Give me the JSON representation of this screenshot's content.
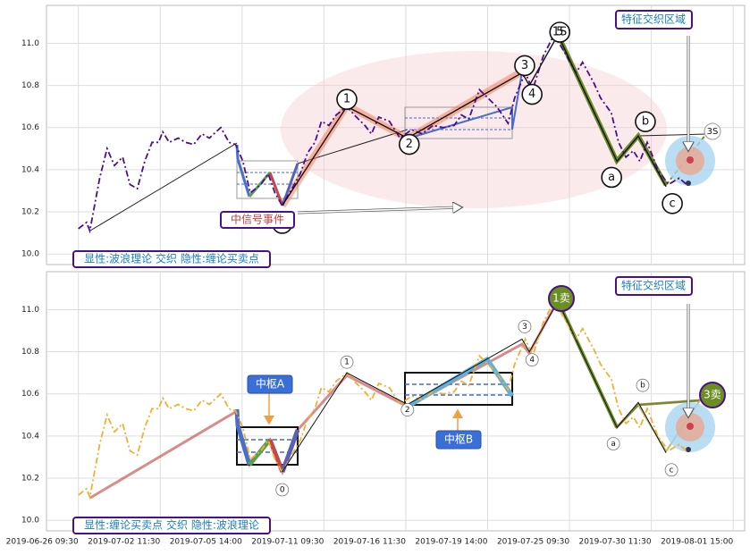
{
  "chart_data": [
    {
      "type": "line",
      "ylim": [
        9.95,
        11.18
      ],
      "yticks": [
        {
          "value": 10,
          "label": "10.0"
        },
        10.2,
        10.4,
        10.6,
        10.8,
        {
          "value": 11,
          "label": "11.0"
        }
      ],
      "series": [
        {
          "color": "#4b0f8c",
          "x": [
            0,
            0.1,
            0.14,
            0.26,
            0.35,
            0.44,
            0.54,
            0.63,
            0.72,
            0.81,
            0.9,
            0.98,
            1.03,
            1.11,
            1.22,
            1.31,
            1.41,
            1.51,
            1.6,
            1.74,
            1.84,
            1.92,
            2.01,
            2.1,
            2.23,
            2.32,
            2.4,
            2.49,
            2.58,
            2.71,
            2.8,
            2.89,
            2.97,
            3.06,
            3.15,
            3.28,
            3.37,
            3.5,
            3.58,
            3.67,
            3.8,
            3.93,
            4.07,
            4.2,
            4.33,
            4.46,
            4.59,
            4.68,
            4.77,
            4.9,
            5.03,
            5.11,
            5.25,
            5.33,
            5.46,
            5.55,
            5.68,
            5.81,
            5.95,
            6.08,
            6.16,
            6.3,
            6.38,
            6.51,
            6.6,
            6.69,
            6.78,
            6.86,
            6.95,
            7.08,
            7.21,
            7.34,
            7.43
          ],
          "values": [
            10.12,
            10.15,
            10.11,
            10.36,
            10.5,
            10.42,
            10.46,
            10.33,
            10.31,
            10.44,
            10.53,
            10.53,
            10.58,
            10.53,
            10.55,
            10.53,
            10.52,
            10.57,
            10.55,
            10.6,
            10.53,
            10.52,
            10.44,
            10.29,
            10.33,
            10.38,
            10.29,
            10.23,
            10.29,
            10.38,
            10.48,
            10.53,
            10.63,
            10.61,
            10.66,
            10.7,
            10.66,
            10.61,
            10.57,
            10.65,
            10.63,
            10.55,
            10.59,
            10.57,
            10.61,
            10.6,
            10.61,
            10.66,
            10.64,
            10.78,
            10.73,
            10.7,
            10.62,
            10.74,
            10.86,
            10.78,
            10.94,
            11.04,
            10.95,
            10.86,
            10.91,
            10.81,
            10.74,
            10.67,
            10.53,
            10.46,
            10.49,
            10.44,
            10.53,
            10.4,
            10.33,
            10.36,
            10.33
          ]
        }
      ],
      "wave": {
        "labels": [
          "0",
          "1",
          "2",
          "3",
          "4",
          "5",
          "a",
          "b",
          "c"
        ],
        "x": [
          2.49,
          3.28,
          4.02,
          5.42,
          5.51,
          5.86,
          6.58,
          6.84,
          7.18
        ],
        "values": [
          10.23,
          10.7,
          10.55,
          10.86,
          10.8,
          11.04,
          10.44,
          10.56,
          10.32
        ]
      },
      "annotations": [
        "显性:波浪理论 交织 隐性:缠论买卖点",
        "中信号事件",
        "特征交织区域",
        "1S",
        "3S"
      ]
    },
    {
      "type": "line",
      "ylim": [
        9.95,
        11.18
      ],
      "yticks": [
        {
          "value": 10,
          "label": "10.0"
        },
        10.2,
        10.4,
        10.6,
        10.8,
        {
          "value": 11,
          "label": "11.0"
        }
      ],
      "xlim": [
        -0.39,
        8.14
      ],
      "xticks": [
        {
          "value": 0,
          "label": "2019-06-26 09:30"
        },
        {
          "value": 1,
          "label": "2019-07-02 11:30"
        },
        {
          "value": 2,
          "label": "2019-07-05 14:00"
        },
        {
          "value": 3,
          "label": "2019-07-11 09:30"
        },
        {
          "value": 4,
          "label": "2019-07-16 11:30"
        },
        {
          "value": 5,
          "label": "2019-07-19 14:00"
        },
        {
          "value": 6,
          "label": "2019-07-25 09:30"
        },
        {
          "value": 7,
          "label": "2019-07-30 11:30"
        },
        {
          "value": 8,
          "label": "2019-08-01 15:00"
        }
      ],
      "series": [
        {
          "color": "#f0b030",
          "x": [
            0,
            0.1,
            0.14,
            0.26,
            0.35,
            0.44,
            0.54,
            0.63,
            0.72,
            0.81,
            0.9,
            0.98,
            1.03,
            1.11,
            1.22,
            1.31,
            1.41,
            1.51,
            1.6,
            1.74,
            1.84,
            1.92,
            2.01,
            2.1,
            2.23,
            2.32,
            2.4,
            2.49,
            2.58,
            2.71,
            2.8,
            2.89,
            2.97,
            3.06,
            3.15,
            3.28,
            3.37,
            3.5,
            3.58,
            3.67,
            3.8,
            3.93,
            4.07,
            4.2,
            4.33,
            4.46,
            4.59,
            4.68,
            4.77,
            4.9,
            5.03,
            5.11,
            5.25,
            5.33,
            5.46,
            5.55,
            5.68,
            5.81,
            5.95,
            6.08,
            6.16,
            6.3,
            6.38,
            6.51,
            6.6,
            6.69,
            6.78,
            6.86,
            6.95,
            7.08,
            7.21,
            7.34,
            7.43
          ],
          "values": [
            10.12,
            10.15,
            10.11,
            10.36,
            10.5,
            10.42,
            10.46,
            10.33,
            10.31,
            10.44,
            10.53,
            10.53,
            10.58,
            10.53,
            10.55,
            10.53,
            10.52,
            10.57,
            10.55,
            10.6,
            10.53,
            10.52,
            10.44,
            10.29,
            10.33,
            10.38,
            10.29,
            10.23,
            10.29,
            10.38,
            10.48,
            10.53,
            10.63,
            10.61,
            10.66,
            10.7,
            10.66,
            10.61,
            10.57,
            10.65,
            10.63,
            10.55,
            10.59,
            10.57,
            10.61,
            10.6,
            10.61,
            10.66,
            10.64,
            10.78,
            10.73,
            10.7,
            10.62,
            10.74,
            10.86,
            10.78,
            10.94,
            11.04,
            10.95,
            10.86,
            10.91,
            10.81,
            10.74,
            10.67,
            10.53,
            10.46,
            10.49,
            10.44,
            10.53,
            10.4,
            10.33,
            10.36,
            10.33
          ]
        }
      ],
      "wave": {
        "labels": [
          "0",
          "1",
          "2",
          "3",
          "4",
          null,
          "a",
          "b",
          "c"
        ],
        "x": [
          2.49,
          3.28,
          4.02,
          5.42,
          5.51,
          5.86,
          6.58,
          6.84,
          7.18
        ],
        "values": [
          10.23,
          10.7,
          10.55,
          10.86,
          10.8,
          11.04,
          10.44,
          10.56,
          10.32
        ]
      },
      "annotations": [
        "显性:缠论买卖点 交织 隐性:波浪理论",
        "中枢A",
        "中枢B",
        "特征交织区域",
        "1卖",
        "3卖"
      ]
    }
  ]
}
